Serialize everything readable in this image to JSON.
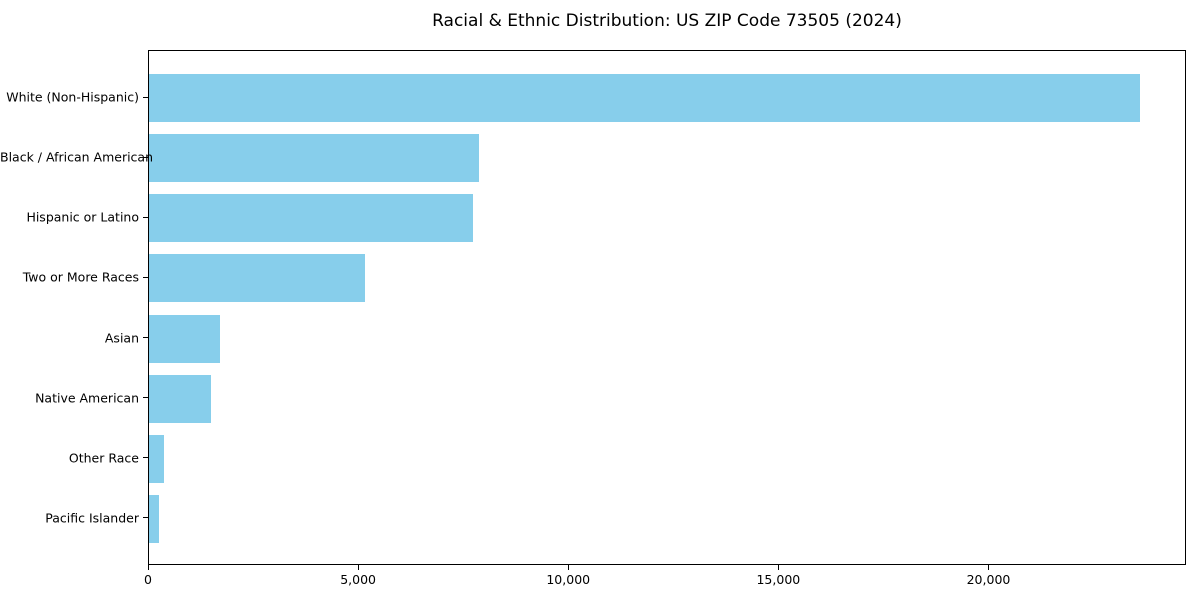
{
  "chart_data": {
    "type": "bar",
    "orientation": "horizontal",
    "title": "Racial & Ethnic Distribution: US ZIP Code 73505 (2024)",
    "categories": [
      "White (Non-Hispanic)",
      "Black / African American",
      "Hispanic or Latino",
      "Two or More Races",
      "Asian",
      "Native American",
      "Other Race",
      "Pacific Islander"
    ],
    "values": [
      23570,
      7860,
      7710,
      5140,
      1690,
      1480,
      360,
      240
    ],
    "xlabel": "",
    "ylabel": "",
    "xlim": [
      0,
      24700
    ],
    "x_ticks": [
      0,
      5000,
      10000,
      15000,
      20000
    ],
    "x_tick_labels": [
      "0",
      "5,000",
      "10,000",
      "15,000",
      "20,000"
    ],
    "grid": false,
    "legend": null,
    "bar_color": "#87CEEB",
    "axis_color": "#000000",
    "background_color": "#ffffff"
  }
}
